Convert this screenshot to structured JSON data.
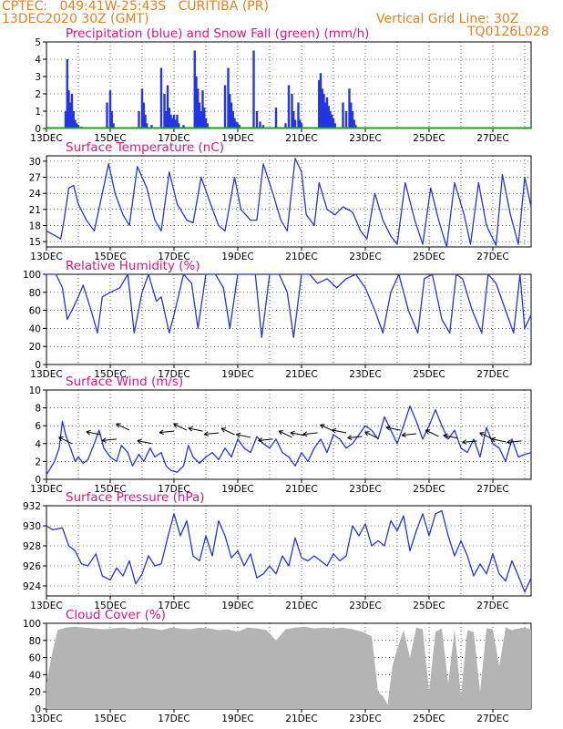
{
  "header": {
    "line1": "CPTEC:   049:41W-25:43S   CURITIBA (PR)",
    "line2": "13DEC2020 30Z (GMT)",
    "grid_note": "Vertical Grid Line: 30Z",
    "code": "TQ0126L028"
  },
  "colors": {
    "header": "#e8801c",
    "title": "#e0157a",
    "line": "#2335e6",
    "snow": "#1aa01a",
    "cloud": "#b4b4b4"
  },
  "x_axis_labels": [
    "13DEC",
    "15DEC",
    "17DEC",
    "19DEC",
    "21DEC",
    "23DEC",
    "25DEC",
    "27DEC"
  ],
  "chart_data": [
    {
      "type": "bar",
      "title": "Precipitation (blue) and Snow Fall (green) (mm/h)",
      "ylim": [
        0,
        5
      ],
      "yticks": [
        "0",
        "1",
        "2",
        "3",
        "4",
        "5"
      ],
      "x_days": [
        13,
        28.2
      ],
      "series": [
        {
          "name": "Precipitation",
          "x": [
            13.6,
            13.65,
            13.7,
            13.75,
            13.8,
            13.85,
            13.9,
            13.95,
            14.0,
            14.1,
            14.9,
            15.0,
            15.05,
            15.1,
            15.9,
            16.0,
            16.05,
            16.1,
            16.15,
            16.3,
            16.6,
            16.7,
            16.75,
            16.8,
            16.85,
            16.9,
            16.95,
            17.0,
            17.05,
            17.1,
            17.15,
            17.3,
            17.65,
            17.7,
            17.75,
            17.8,
            17.85,
            17.9,
            17.95,
            18.0,
            18.05,
            18.6,
            18.7,
            18.75,
            18.8,
            18.85,
            18.9,
            18.95,
            19.0,
            19.05,
            19.5,
            19.6,
            19.7,
            19.8,
            20.2,
            20.5,
            20.6,
            20.7,
            20.75,
            20.8,
            20.9,
            20.95,
            21.0,
            21.55,
            21.6,
            21.65,
            21.7,
            21.75,
            21.8,
            21.85,
            21.9,
            21.95,
            22.0,
            22.05,
            22.3,
            22.4,
            22.5,
            22.55,
            22.6,
            22.65,
            22.7
          ],
          "values": [
            1.0,
            4.0,
            2.2,
            1.5,
            2.0,
            1.0,
            0.5,
            0.3,
            0.2,
            0.1,
            1.5,
            2.2,
            1.0,
            0.3,
            1.0,
            2.3,
            1.5,
            0.8,
            0.3,
            0.2,
            3.5,
            2.0,
            1.0,
            2.5,
            1.2,
            0.8,
            0.6,
            0.8,
            0.5,
            0.8,
            0.3,
            0.2,
            4.5,
            3.0,
            2.3,
            1.5,
            1.0,
            2.2,
            1.2,
            0.6,
            0.3,
            2.5,
            3.5,
            2.0,
            1.5,
            1.0,
            0.6,
            0.4,
            0.3,
            0.2,
            4.5,
            1.0,
            0.4,
            0.2,
            1.2,
            0.3,
            2.5,
            2.0,
            1.0,
            0.5,
            1.5,
            0.5,
            0.3,
            2.8,
            3.2,
            2.3,
            2.0,
            1.5,
            1.8,
            1.3,
            1.0,
            0.8,
            0.6,
            0.3,
            1.5,
            1.0,
            2.3,
            1.5,
            1.0,
            0.5,
            0.2
          ]
        },
        {
          "name": "Snow Fall",
          "x": [
            13,
            28.2
          ],
          "values": [
            0,
            0
          ]
        }
      ]
    },
    {
      "type": "line",
      "title": "Surface Temperature (nC)",
      "ylim": [
        14,
        31
      ],
      "yticks": [
        "15",
        "18",
        "21",
        "24",
        "27",
        "30"
      ],
      "x_days": [
        13,
        28.2
      ],
      "x": [
        13.0,
        13.3,
        13.45,
        13.55,
        13.7,
        13.85,
        14.0,
        14.25,
        14.5,
        14.75,
        14.95,
        15.15,
        15.4,
        15.6,
        15.85,
        16.15,
        16.4,
        16.6,
        16.85,
        17.1,
        17.4,
        17.6,
        17.85,
        18.15,
        18.4,
        18.6,
        18.9,
        19.1,
        19.4,
        19.6,
        19.8,
        20.1,
        20.35,
        20.55,
        20.8,
        21.0,
        21.15,
        21.4,
        21.55,
        21.8,
        22.05,
        22.3,
        22.6,
        22.85,
        23.05,
        23.3,
        23.55,
        23.8,
        24.0,
        24.25,
        24.55,
        24.8,
        25.05,
        25.3,
        25.55,
        25.8,
        26.1,
        26.3,
        26.55,
        26.8,
        27.1,
        27.3,
        27.55,
        27.8,
        28.0,
        28.2
      ],
      "values": [
        17,
        16,
        15.5,
        19,
        25,
        25.5,
        22,
        19,
        17,
        24,
        29.5,
        24,
        20,
        18,
        29,
        25,
        19,
        17,
        28,
        22,
        19,
        18.5,
        27,
        22,
        18,
        17,
        27,
        21,
        19,
        19,
        29.5,
        24,
        19,
        17,
        30.5,
        28,
        20,
        18,
        26,
        21,
        20,
        21.5,
        20.5,
        17,
        15.5,
        24,
        19,
        16,
        14.5,
        26,
        19,
        14.5,
        25,
        19,
        14,
        26,
        20,
        14.5,
        26,
        18,
        14.3,
        27.5,
        20,
        14.5,
        27,
        21.5
      ]
    },
    {
      "type": "line",
      "title": "Relative Humidity (%)",
      "ylim": [
        0,
        100
      ],
      "yticks": [
        "0",
        "20",
        "40",
        "60",
        "80",
        "100"
      ],
      "x_days": [
        13,
        28.2
      ],
      "x": [
        13.0,
        13.3,
        13.5,
        13.65,
        13.8,
        14.0,
        14.15,
        14.4,
        14.6,
        14.75,
        15.0,
        15.3,
        15.55,
        15.75,
        16.0,
        16.2,
        16.45,
        16.6,
        16.85,
        17.0,
        17.3,
        17.55,
        17.75,
        18.0,
        18.3,
        18.55,
        18.75,
        19.0,
        19.3,
        19.55,
        19.75,
        20.0,
        20.3,
        20.55,
        20.75,
        21.0,
        21.25,
        21.5,
        21.8,
        22.1,
        22.4,
        22.7,
        23.0,
        23.3,
        23.55,
        23.8,
        24.05,
        24.35,
        24.65,
        24.85,
        25.1,
        25.4,
        25.65,
        25.85,
        26.05,
        26.35,
        26.65,
        26.85,
        27.1,
        27.4,
        27.65,
        27.85,
        28.0,
        28.2
      ],
      "values": [
        100,
        100,
        85,
        50,
        60,
        75,
        88,
        60,
        35,
        75,
        80,
        85,
        100,
        35,
        80,
        100,
        70,
        75,
        35,
        55,
        100,
        90,
        40,
        100,
        100,
        85,
        40,
        100,
        100,
        100,
        30,
        100,
        100,
        80,
        30,
        100,
        100,
        90,
        95,
        85,
        95,
        100,
        85,
        60,
        35,
        80,
        100,
        60,
        35,
        95,
        100,
        50,
        35,
        100,
        95,
        60,
        35,
        100,
        90,
        60,
        35,
        100,
        40,
        55
      ]
    },
    {
      "type": "line",
      "title": "Surface Wind (m/s)",
      "ylim": [
        0,
        10
      ],
      "yticks": [
        "0",
        "2",
        "4",
        "6",
        "8",
        "10"
      ],
      "x_days": [
        13,
        28.2
      ],
      "x": [
        13.0,
        13.25,
        13.4,
        13.5,
        13.6,
        13.75,
        13.9,
        14.0,
        14.15,
        14.3,
        14.5,
        14.65,
        14.8,
        15.0,
        15.2,
        15.35,
        15.55,
        15.7,
        15.9,
        16.05,
        16.25,
        16.4,
        16.6,
        16.75,
        16.9,
        17.1,
        17.3,
        17.45,
        17.6,
        17.8,
        18.0,
        18.2,
        18.4,
        18.6,
        18.8,
        19.0,
        19.2,
        19.4,
        19.6,
        19.8,
        20.0,
        20.2,
        20.4,
        20.6,
        20.8,
        21.0,
        21.2,
        21.4,
        21.6,
        21.8,
        22.0,
        22.2,
        22.4,
        22.6,
        22.8,
        23.0,
        23.2,
        23.4,
        23.6,
        23.8,
        24.0,
        24.2,
        24.4,
        24.6,
        24.8,
        25.0,
        25.2,
        25.4,
        25.6,
        25.8,
        26.0,
        26.2,
        26.4,
        26.6,
        26.8,
        27.0,
        27.2,
        27.4,
        27.6,
        27.8,
        28.0,
        28.2
      ],
      "values": [
        0.5,
        2.0,
        3.5,
        6.5,
        5.0,
        3.5,
        2.0,
        2.5,
        1.8,
        2.2,
        4.0,
        5.5,
        3.5,
        2.5,
        2.0,
        3.8,
        3.0,
        1.5,
        2.8,
        2.0,
        3.5,
        2.5,
        3.0,
        1.5,
        1.0,
        0.8,
        1.5,
        3.8,
        2.5,
        1.8,
        2.5,
        3.0,
        2.2,
        3.5,
        2.5,
        4.5,
        3.5,
        3.0,
        4.8,
        4.0,
        3.5,
        4.5,
        3.0,
        2.5,
        1.5,
        3.0,
        2.0,
        3.5,
        4.5,
        3.0,
        5.0,
        4.5,
        3.5,
        4.0,
        5.0,
        6.0,
        5.5,
        4.5,
        7.0,
        5.5,
        4.0,
        6.0,
        8.2,
        6.5,
        4.5,
        6.0,
        7.8,
        6.0,
        4.5,
        5.5,
        3.5,
        3.0,
        4.5,
        2.5,
        5.8,
        4.0,
        3.5,
        2.0,
        4.5,
        2.5,
        2.8,
        3.0
      ],
      "arrows_x": [
        13.8,
        14.7,
        15.2,
        15.6,
        16.3,
        17.0,
        17.4,
        17.9,
        18.4,
        18.9,
        19.4,
        20.1,
        20.7,
        21.1,
        21.5,
        22.0,
        22.4,
        22.9,
        23.4,
        24.1,
        24.6,
        25.3,
        25.9,
        26.5,
        27.0,
        27.4,
        27.9
      ],
      "arrows_y": [
        4.0,
        5.0,
        4.5,
        5.5,
        4.0,
        5.4,
        5.5,
        5.4,
        5.2,
        5.0,
        4.7,
        4.5,
        4.7,
        4.9,
        5.2,
        5.4,
        5.2,
        4.8,
        4.6,
        5.5,
        5.1,
        4.8,
        4.6,
        4.3,
        4.5,
        4.2,
        4.3
      ]
    },
    {
      "type": "line",
      "title": "Surface Pressure (hPa)",
      "ylim": [
        923,
        932
      ],
      "yticks": [
        "924",
        "926",
        "928",
        "930",
        "932"
      ],
      "x_days": [
        13,
        28.2
      ],
      "x": [
        13.0,
        13.2,
        13.5,
        13.7,
        13.9,
        14.1,
        14.3,
        14.55,
        14.75,
        15.0,
        15.2,
        15.4,
        15.6,
        15.8,
        16.0,
        16.2,
        16.4,
        16.6,
        16.8,
        17.0,
        17.2,
        17.4,
        17.6,
        17.8,
        18.0,
        18.2,
        18.4,
        18.6,
        18.8,
        19.0,
        19.2,
        19.4,
        19.6,
        19.8,
        20.0,
        20.2,
        20.4,
        20.6,
        20.8,
        21.0,
        21.2,
        21.4,
        21.6,
        21.8,
        22.0,
        22.2,
        22.4,
        22.6,
        22.8,
        23.0,
        23.2,
        23.4,
        23.6,
        23.8,
        24.0,
        24.2,
        24.4,
        24.6,
        24.8,
        25.0,
        25.2,
        25.4,
        25.6,
        25.8,
        26.0,
        26.2,
        26.4,
        26.6,
        26.8,
        27.0,
        27.2,
        27.4,
        27.6,
        27.8,
        28.0,
        28.2
      ],
      "values": [
        930.0,
        929.6,
        929.8,
        928.0,
        927.5,
        926.2,
        926.0,
        927.2,
        925.0,
        924.6,
        925.8,
        925.0,
        926.5,
        924.2,
        925.2,
        927.0,
        926.0,
        926.2,
        928.8,
        931.2,
        929.0,
        930.5,
        927.0,
        926.5,
        929.0,
        927.0,
        930.5,
        929.0,
        926.8,
        927.5,
        926.0,
        927.2,
        924.8,
        925.2,
        926.0,
        925.2,
        927.0,
        926.0,
        928.8,
        926.8,
        926.5,
        927.0,
        926.5,
        926.0,
        927.2,
        926.5,
        927.0,
        930.0,
        929.0,
        930.2,
        928.0,
        928.5,
        928.0,
        930.5,
        929.5,
        931.0,
        927.5,
        929.5,
        931.2,
        929.0,
        931.2,
        931.5,
        929.0,
        927.0,
        928.5,
        927.0,
        925.0,
        926.2,
        925.2,
        927.2,
        925.2,
        924.5,
        926.5,
        925.0,
        923.4,
        924.8
      ]
    },
    {
      "type": "area",
      "title": "Cloud Cover (%)",
      "ylim": [
        0,
        100
      ],
      "yticks": [
        "0",
        "20",
        "40",
        "60",
        "80",
        "100"
      ],
      "x_days": [
        13,
        28.2
      ],
      "x": [
        13.0,
        13.15,
        13.35,
        13.6,
        13.9,
        14.2,
        14.5,
        14.8,
        15.1,
        15.4,
        15.7,
        16.0,
        16.3,
        16.6,
        16.9,
        17.2,
        17.5,
        17.8,
        18.1,
        18.4,
        18.7,
        19.0,
        19.3,
        19.6,
        19.9,
        20.2,
        20.5,
        20.8,
        21.1,
        21.4,
        21.7,
        22.0,
        22.3,
        22.6,
        22.9,
        23.2,
        23.4,
        23.55,
        23.7,
        23.85,
        24.0,
        24.2,
        24.4,
        24.6,
        24.8,
        25.0,
        25.2,
        25.4,
        25.6,
        25.8,
        26.0,
        26.2,
        26.4,
        26.6,
        26.8,
        27.0,
        27.2,
        27.4,
        27.6,
        27.8,
        28.0,
        28.2
      ],
      "values": [
        30,
        60,
        92,
        95,
        96,
        95,
        94,
        93,
        94,
        95,
        93,
        95,
        94,
        92,
        95,
        94,
        93,
        95,
        94,
        92,
        93,
        90,
        95,
        94,
        92,
        80,
        93,
        95,
        96,
        94,
        95,
        94,
        95,
        93,
        90,
        85,
        20,
        15,
        5,
        50,
        70,
        92,
        60,
        95,
        93,
        20,
        90,
        94,
        30,
        93,
        15,
        92,
        90,
        20,
        94,
        93,
        50,
        95,
        92,
        94,
        95,
        93
      ]
    }
  ]
}
